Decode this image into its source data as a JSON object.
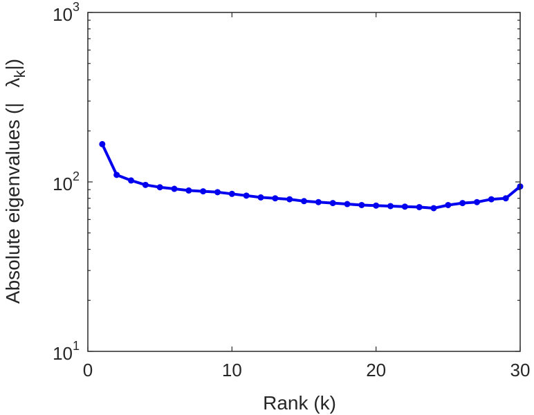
{
  "chart_data": {
    "type": "line",
    "xlabel": "Rank (k)",
    "ylabel_prefix": "Absolute eigenvalues (|",
    "ylabel_lambda": "λ",
    "ylabel_sub": "k",
    "ylabel_suffix": "|)",
    "xlim": [
      0,
      30
    ],
    "ylim": [
      10,
      1000
    ],
    "yscale": "log",
    "grid": false,
    "x_ticks": [
      "0",
      "10",
      "20",
      "30"
    ],
    "y_ticks": [
      {
        "base": "10",
        "exp": "1",
        "value": 10
      },
      {
        "base": "10",
        "exp": "2",
        "value": 100
      },
      {
        "base": "10",
        "exp": "3",
        "value": 1000
      }
    ],
    "series": [
      {
        "color": "#0000ee",
        "x": [
          1,
          2,
          3,
          4,
          5,
          6,
          7,
          8,
          9,
          10,
          11,
          12,
          13,
          14,
          15,
          16,
          17,
          18,
          19,
          20,
          21,
          22,
          23,
          24,
          25,
          26,
          27,
          28,
          29,
          30
        ],
        "y": [
          167,
          110,
          102,
          96,
          93,
          91,
          89,
          88,
          87,
          85,
          83,
          81,
          80,
          79,
          77,
          76,
          75,
          74,
          73,
          72.5,
          72,
          71.5,
          71,
          70,
          73,
          75,
          76,
          79,
          80,
          94
        ]
      }
    ]
  }
}
